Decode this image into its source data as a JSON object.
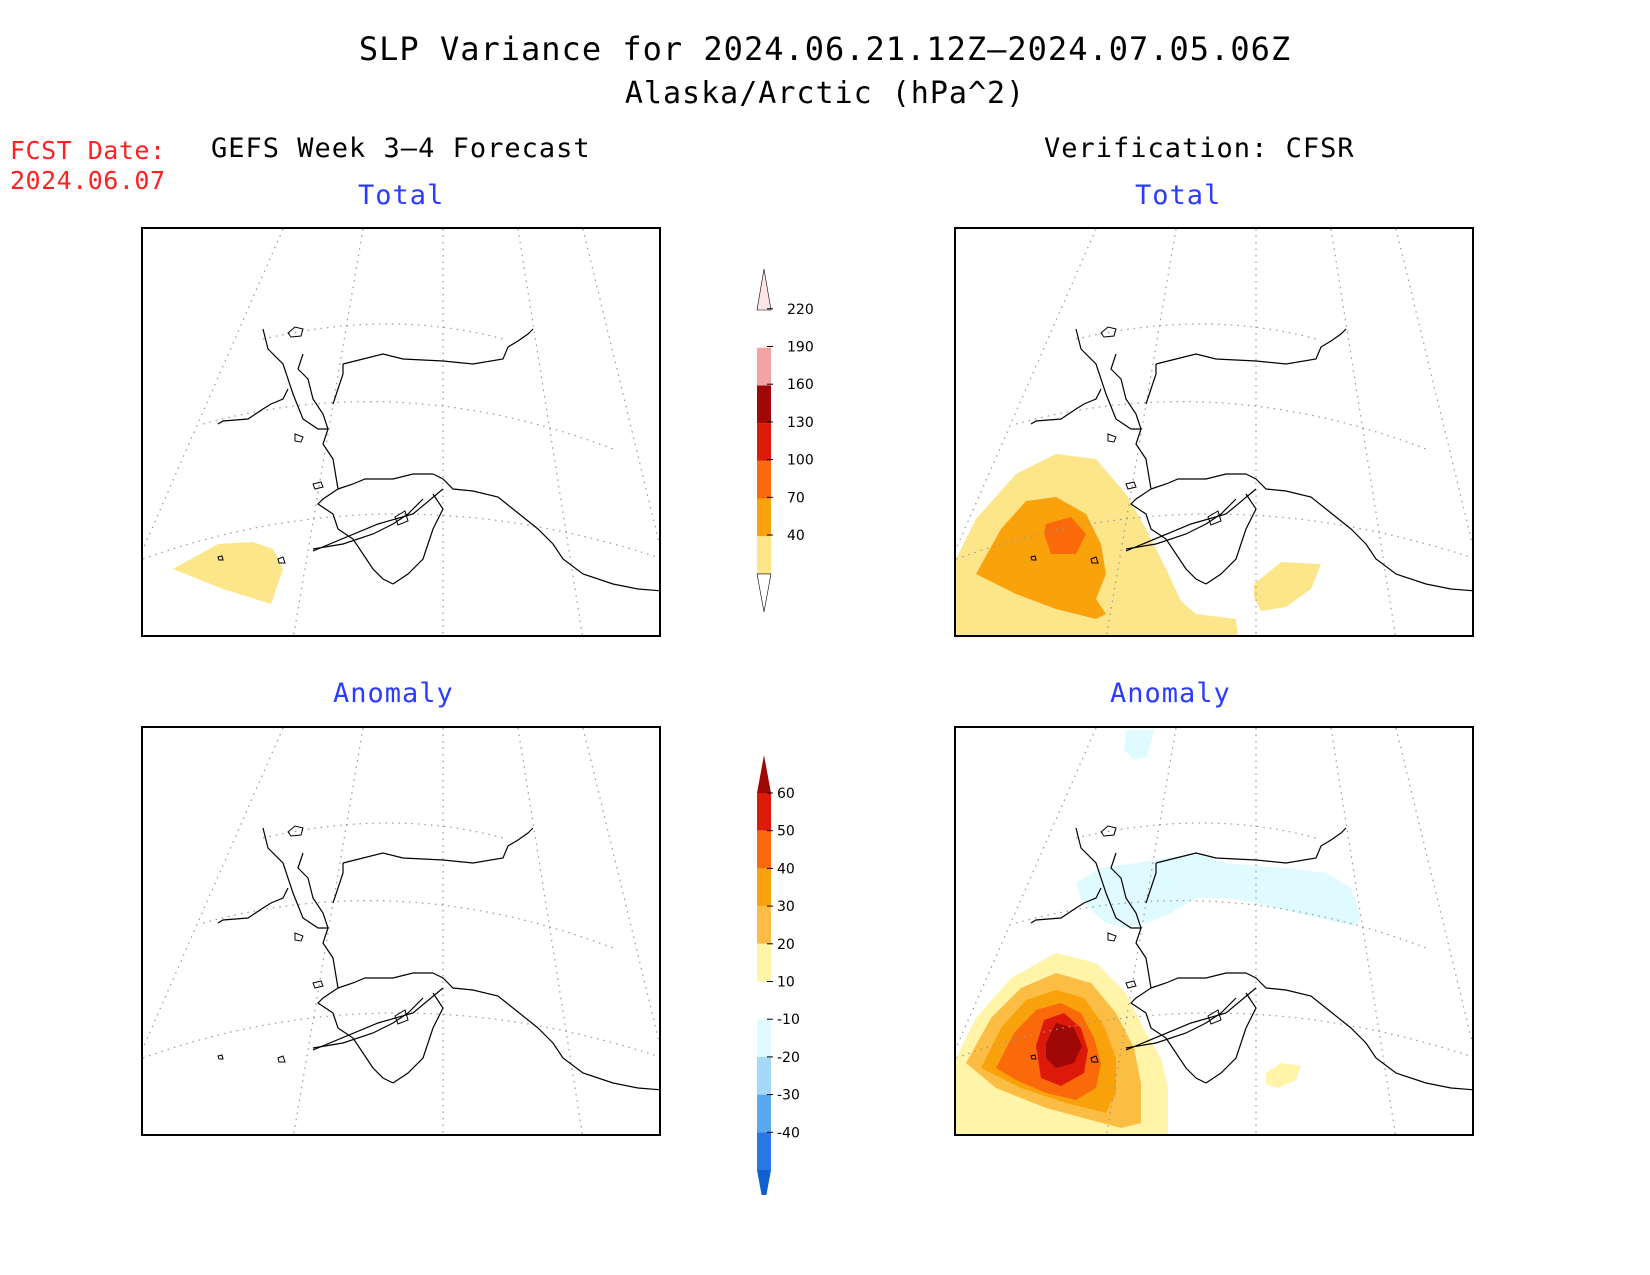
{
  "title": "SLP Variance for 2024.06.21.12Z–2024.07.05.06Z",
  "subtitle": "Alaska/Arctic (hPa^2)",
  "fcst_date": {
    "label": "FCST Date:",
    "value": "2024.06.07"
  },
  "left_column": {
    "heading": "GEFS Week 3–4 Forecast"
  },
  "right_column": {
    "heading": "Verification: CFSR"
  },
  "panels": {
    "forecast_total": {
      "label": "Total"
    },
    "verification_total": {
      "label": "Total"
    },
    "forecast_anomaly": {
      "label": "Anomaly"
    },
    "verification_anomaly": {
      "label": "Anomaly"
    }
  },
  "total_colorbar": {
    "levels": [
      "40",
      "70",
      "100",
      "130",
      "160",
      "190",
      "220"
    ],
    "colors": [
      "#fde68a",
      "#f9a20c",
      "#fb6a0a",
      "#dd1a0a",
      "#a00808",
      "#f2a3a3",
      "#fde6e6"
    ]
  },
  "anomaly_colorbar": {
    "levels": [
      "60",
      "50",
      "40",
      "30",
      "20",
      "10",
      "-10",
      "-20",
      "-30",
      "-40"
    ],
    "colors": [
      "#a00808",
      "#dd1a0a",
      "#fb6a0a",
      "#f9a20c",
      "#fbbd44",
      "#fff4a8",
      "#ffffff",
      "#dffbff",
      "#a8d8f8",
      "#5aa8f0",
      "#2a78e6",
      "#1060d0"
    ]
  }
}
